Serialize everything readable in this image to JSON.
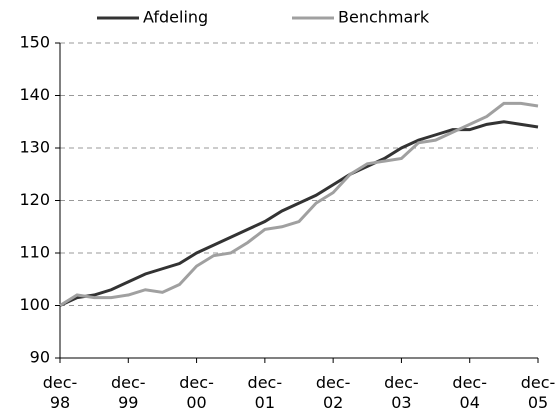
{
  "chart_data": {
    "type": "line",
    "categories": [
      "dec-98",
      null,
      null,
      null,
      "dec-99",
      null,
      null,
      null,
      "dec-00",
      null,
      null,
      null,
      "dec-01",
      null,
      null,
      null,
      "dec-02",
      null,
      null,
      null,
      "dec-03",
      null,
      null,
      null,
      "dec-04",
      null,
      null,
      null,
      "dec-05"
    ],
    "series": [
      {
        "name": "Afdeling",
        "color": "#333333",
        "values": [
          100,
          101.5,
          102,
          103,
          104.5,
          106,
          107,
          108,
          110,
          111.5,
          113,
          114.5,
          116,
          118,
          119.5,
          121,
          123,
          125,
          126.5,
          128,
          130,
          131.5,
          132.5,
          133.5,
          133.5,
          134.5,
          135,
          134.5,
          134
        ]
      },
      {
        "name": "Benchmark",
        "color": "#a0a0a0",
        "values": [
          100,
          102,
          101.5,
          101.5,
          102,
          103,
          102.5,
          104,
          107.5,
          109.5,
          110,
          112,
          114.5,
          115,
          116,
          119.5,
          121.5,
          125,
          127,
          127.5,
          128,
          131,
          131.5,
          133,
          134.5,
          136,
          138.5,
          138.5,
          138
        ]
      }
    ],
    "ylim": [
      90,
      150
    ],
    "yticks": [
      90,
      100,
      110,
      120,
      130,
      140,
      150
    ],
    "grid": true,
    "legend": "top"
  }
}
